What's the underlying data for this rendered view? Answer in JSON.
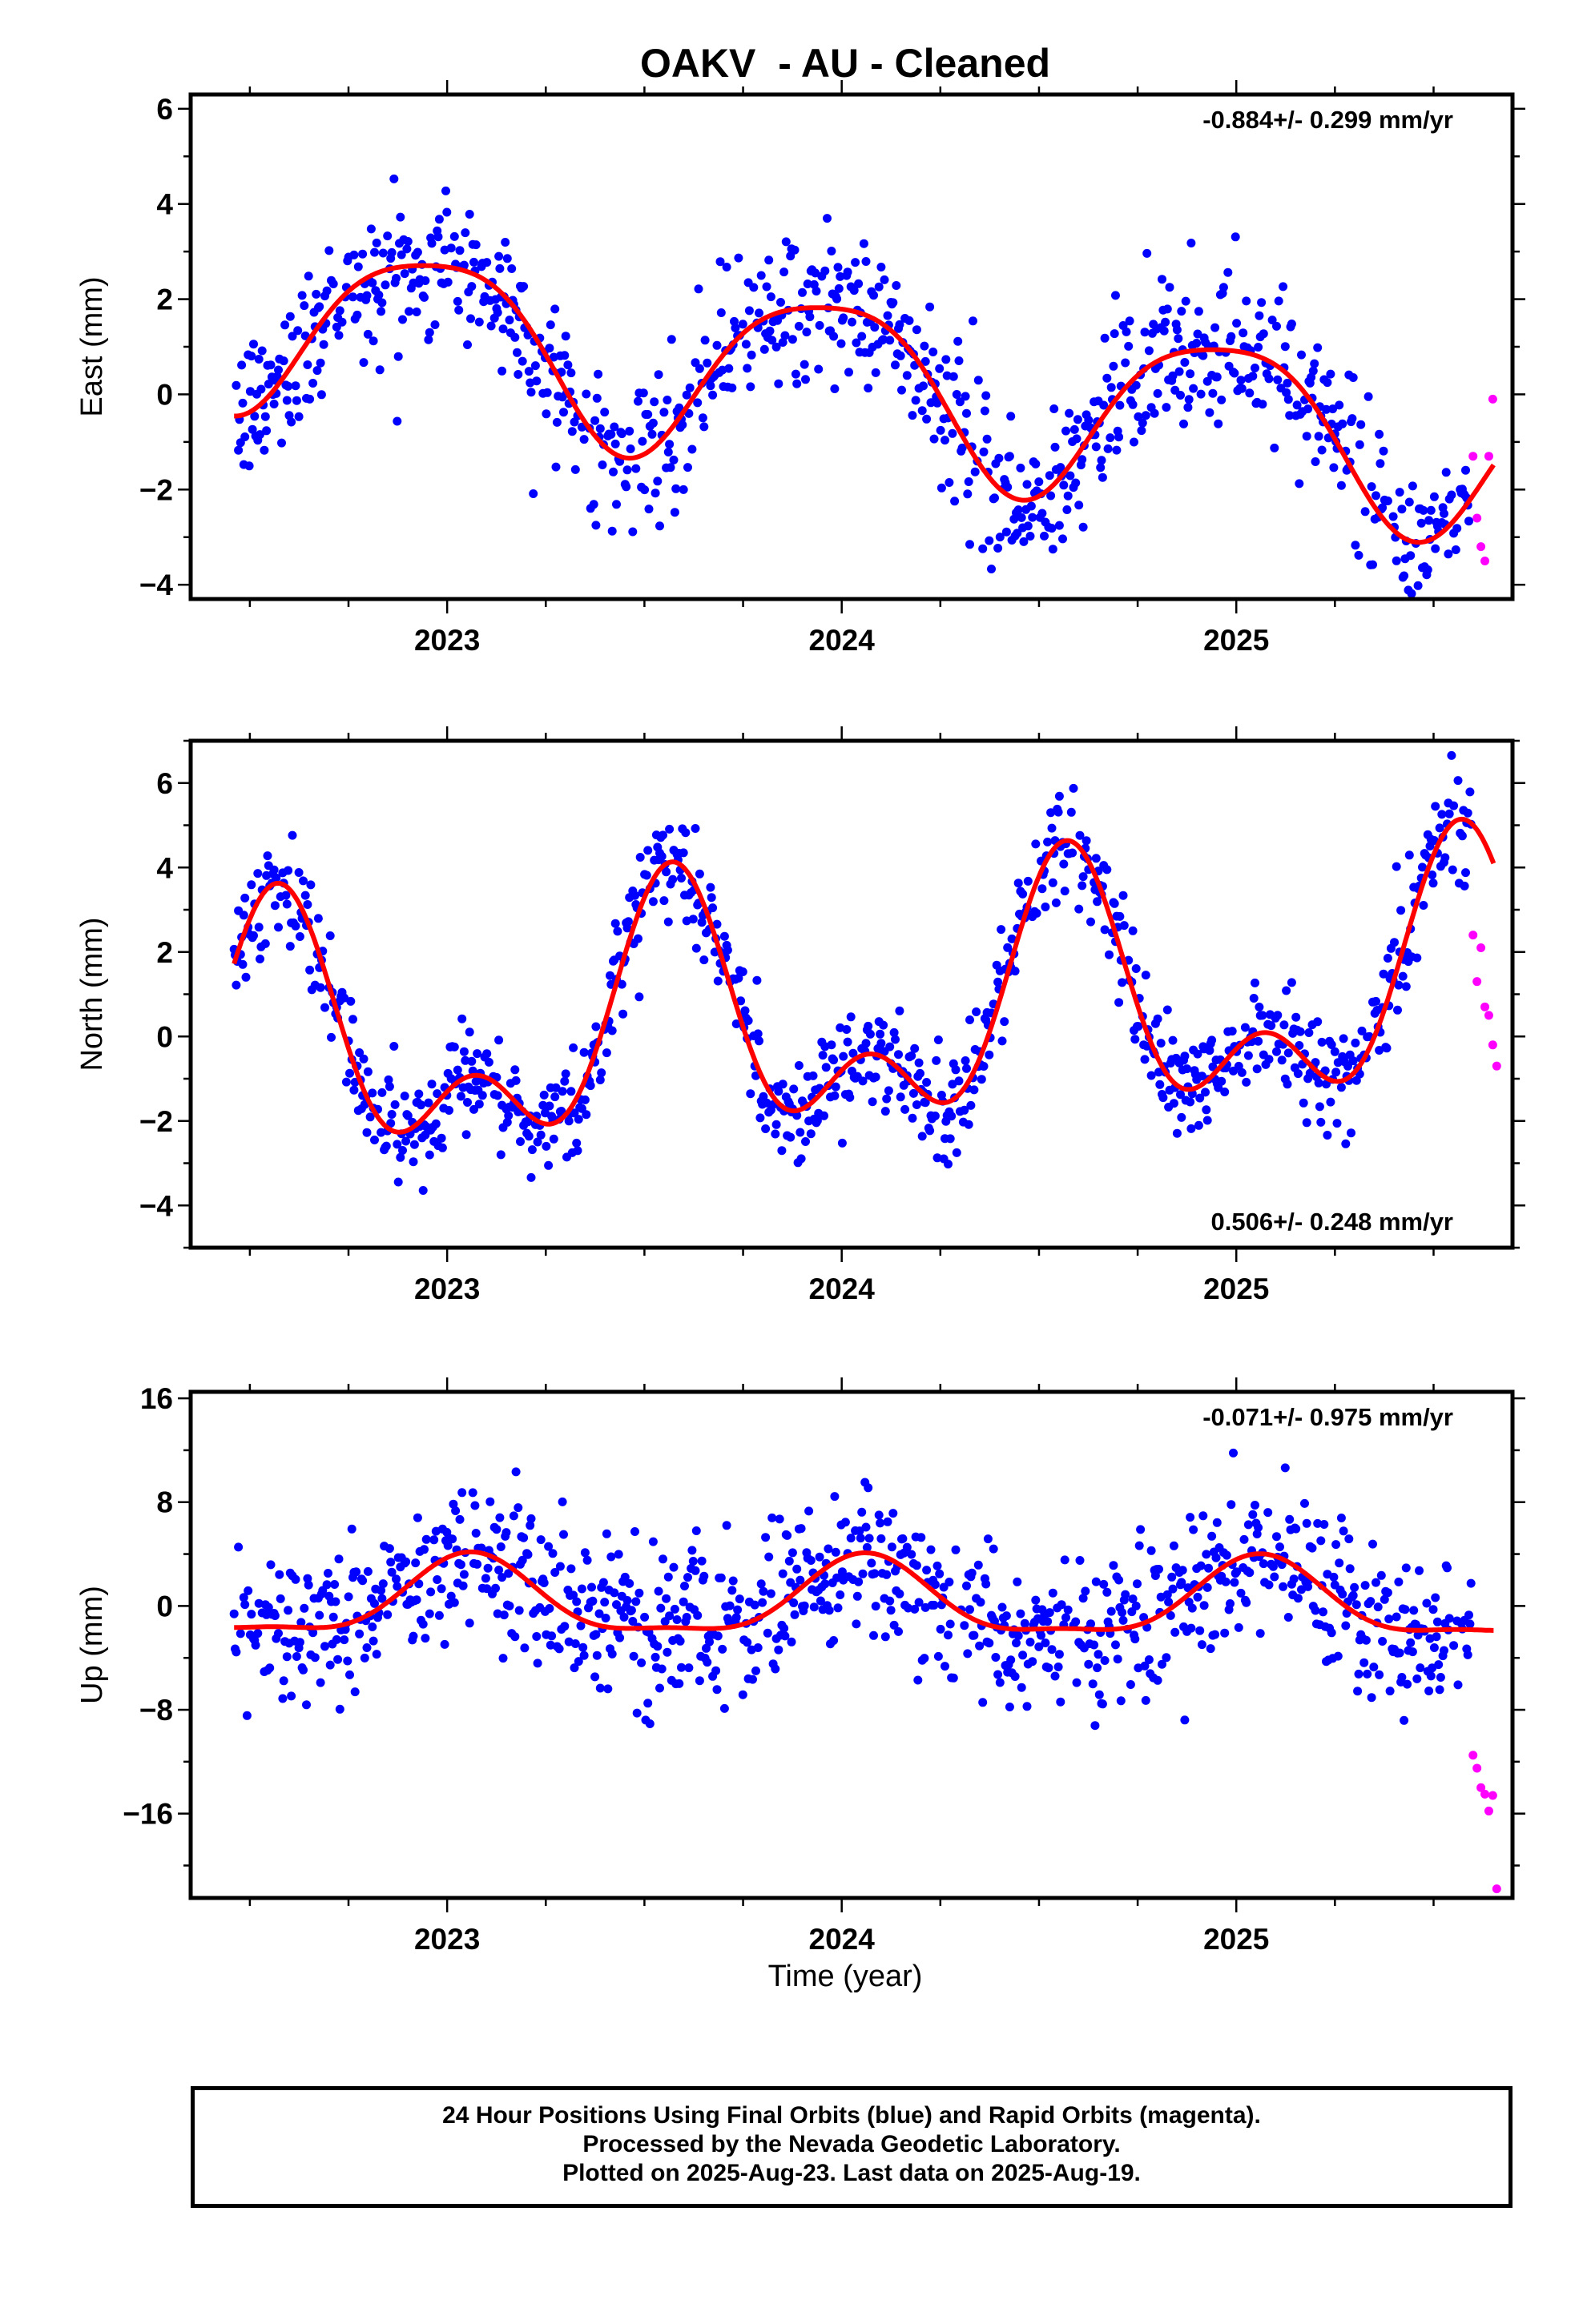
{
  "title": "OAKV  - AU - Cleaned",
  "xlabel": "Time (year)",
  "footer": {
    "line1": "24 Hour Positions Using Final Orbits (blue) and Rapid Orbits (magenta).",
    "line2": "Processed by the Nevada Geodetic Laboratory.",
    "line3": "Plotted on 2025-Aug-23. Last data on 2025-Aug-19."
  },
  "colors": {
    "final_orbits": "#0000ff",
    "rapid_orbits": "#ff00ff",
    "model": "#ff0000"
  },
  "chart_data": [
    {
      "type": "scatter",
      "ylabel": "East (mm)",
      "rate_text": "-0.884+/- 0.299 mm/yr",
      "rate_position": "top-right",
      "xlim": [
        2022.35,
        2025.7
      ],
      "ylim": [
        -4.3,
        6.3
      ],
      "xticks": [
        2023,
        2024,
        2025
      ],
      "yticks": [
        -4,
        -2,
        0,
        2,
        4,
        6
      ],
      "ytick_labels": [
        "−4",
        "−2",
        "0",
        "2",
        "4",
        "6"
      ],
      "model": {
        "rate": -0.884,
        "mean_at_2024": 0.33,
        "annual_amp": 1.8,
        "annual_peak": 0.96,
        "semiannual_amp": 0.35,
        "semiannual_peak": 0.2,
        "noise_sd": 0.8
      },
      "rapid_points": [
        [
          2025.6,
          -1.3
        ],
        [
          2025.61,
          -2.6
        ],
        [
          2025.62,
          -3.2
        ],
        [
          2025.63,
          -3.5
        ],
        [
          2025.64,
          -1.3
        ],
        [
          2025.65,
          -0.1
        ]
      ]
    },
    {
      "type": "scatter",
      "ylabel": "North (mm)",
      "rate_text": "0.506+/- 0.248 mm/yr",
      "rate_position": "bottom-right",
      "xlim": [
        2022.35,
        2025.7
      ],
      "ylim": [
        -5.0,
        7.0
      ],
      "xticks": [
        2023,
        2024,
        2025
      ],
      "yticks": [
        -4,
        -2,
        0,
        2,
        4,
        6
      ],
      "ytick_labels": [
        "−4",
        "−2",
        "0",
        "2",
        "4",
        "6"
      ],
      "model": {
        "rate": 0.506,
        "mean_at_2024": 0.35,
        "annual_amp": 2.4,
        "annual_peak": 0.57,
        "semiannual_amp": 1.6,
        "semiannual_peak": 0.57,
        "noise_sd": 0.65
      },
      "rapid_points": [
        [
          2025.6,
          2.4
        ],
        [
          2025.61,
          1.3
        ],
        [
          2025.62,
          2.1
        ],
        [
          2025.63,
          0.7
        ],
        [
          2025.64,
          0.5
        ],
        [
          2025.65,
          -0.2
        ],
        [
          2025.66,
          -0.7
        ]
      ]
    },
    {
      "type": "scatter",
      "ylabel": "Up (mm)",
      "rate_text": "-0.071+/- 0.975 mm/yr",
      "rate_position": "top-right",
      "xlim": [
        2022.35,
        2025.7
      ],
      "ylim": [
        -22.5,
        16.5
      ],
      "xticks": [
        2023,
        2024,
        2025
      ],
      "yticks": [
        -16,
        -8,
        0,
        8,
        16
      ],
      "ytick_labels": [
        "−16",
        "−8",
        "0",
        "8",
        "16"
      ],
      "model": {
        "rate": -0.071,
        "mean_at_2024": 0.3,
        "annual_amp": 2.9,
        "annual_peak": 0.06,
        "semiannual_amp": 0.9,
        "semiannual_peak": 0.06,
        "noise_sd": 3.0
      },
      "rapid_points": [
        [
          2025.6,
          -11.5
        ],
        [
          2025.61,
          -12.5
        ],
        [
          2025.62,
          -14.0
        ],
        [
          2025.63,
          -14.5
        ],
        [
          2025.64,
          -15.8
        ],
        [
          2025.65,
          -14.6
        ],
        [
          2025.66,
          -21.8
        ]
      ]
    }
  ]
}
